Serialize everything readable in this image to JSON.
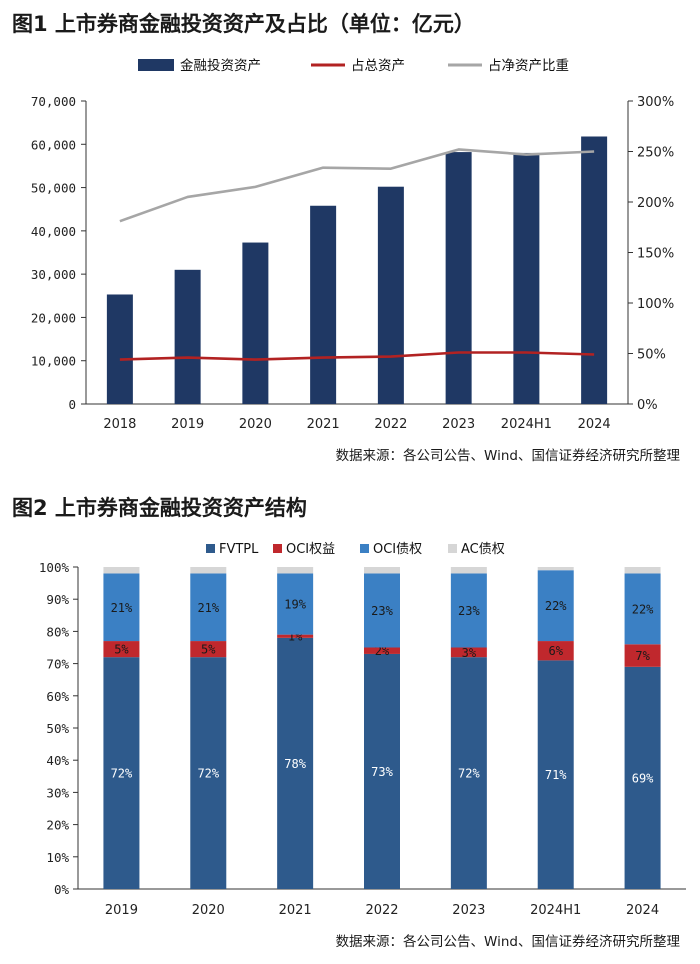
{
  "figure1": {
    "title": "图1  上市券商金融投资资产及占比（单位：亿元）",
    "source": "数据来源：各公司公告、Wind、国信证券经济研究所整理"
  },
  "figure2": {
    "title": "图2  上市券商金融投资资产结构",
    "source": "数据来源：各公司公告、Wind、国信证券经济研究所整理"
  },
  "chart_data": [
    {
      "type": "bar",
      "title": "上市券商金融投资资产及占比（单位：亿元）",
      "categories": [
        "2018",
        "2019",
        "2020",
        "2021",
        "2022",
        "2023",
        "2024H1",
        "2024"
      ],
      "ylim": [
        0,
        70000
      ],
      "yticks": [
        "0",
        "10,000",
        "20,000",
        "30,000",
        "40,000",
        "50,000",
        "60,000",
        "70,000"
      ],
      "y2lim": [
        0,
        300
      ],
      "y2ticks": [
        "0%",
        "50%",
        "100%",
        "150%",
        "200%",
        "250%",
        "300%"
      ],
      "series": [
        {
          "name": "金融投资资产",
          "kind": "bar",
          "axis": "left",
          "color": "#1f3864",
          "values": [
            25300,
            31000,
            37300,
            45800,
            50200,
            58200,
            58000,
            61800
          ]
        },
        {
          "name": "占总资产",
          "kind": "line",
          "axis": "right",
          "color": "#b22222",
          "values": [
            44,
            46,
            44,
            46,
            47,
            51,
            51,
            49
          ]
        },
        {
          "name": "占净资产比重",
          "kind": "line",
          "axis": "right",
          "color": "#a6a6a6",
          "values": [
            181,
            205,
            215,
            234,
            233,
            252,
            247,
            250
          ]
        }
      ],
      "legend": "top"
    },
    {
      "type": "bar",
      "stacked": true,
      "title": "上市券商金融投资资产结构",
      "categories": [
        "2019",
        "2020",
        "2021",
        "2022",
        "2023",
        "2024H1",
        "2024"
      ],
      "ylim": [
        0,
        100
      ],
      "yticks": [
        "0%",
        "10%",
        "20%",
        "30%",
        "40%",
        "50%",
        "60%",
        "70%",
        "80%",
        "90%",
        "100%"
      ],
      "series": [
        {
          "name": "FVTPL",
          "color": "#2e5a8c",
          "values": [
            72,
            72,
            78,
            73,
            72,
            71,
            69
          ],
          "labels": [
            "72%",
            "72%",
            "78%",
            "73%",
            "72%",
            "71%",
            "69%"
          ]
        },
        {
          "name": "OCI权益",
          "color": "#c0282d",
          "values": [
            5,
            5,
            1,
            2,
            3,
            6,
            7
          ],
          "labels": [
            "5%",
            "5%",
            "1%",
            "2%",
            "3%",
            "6%",
            "7%"
          ]
        },
        {
          "name": "OCI债权",
          "color": "#3b80c4",
          "values": [
            21,
            21,
            19,
            23,
            23,
            22,
            22
          ],
          "labels": [
            "21%",
            "21%",
            "19%",
            "23%",
            "23%",
            "22%",
            "22%"
          ]
        },
        {
          "name": "AC债权",
          "color": "#d6d6d6",
          "values": [
            2,
            2,
            2,
            2,
            2,
            1,
            2
          ],
          "labels": [
            "",
            "",
            "",
            "",
            "",
            "",
            ""
          ]
        }
      ],
      "legend": "top"
    }
  ]
}
